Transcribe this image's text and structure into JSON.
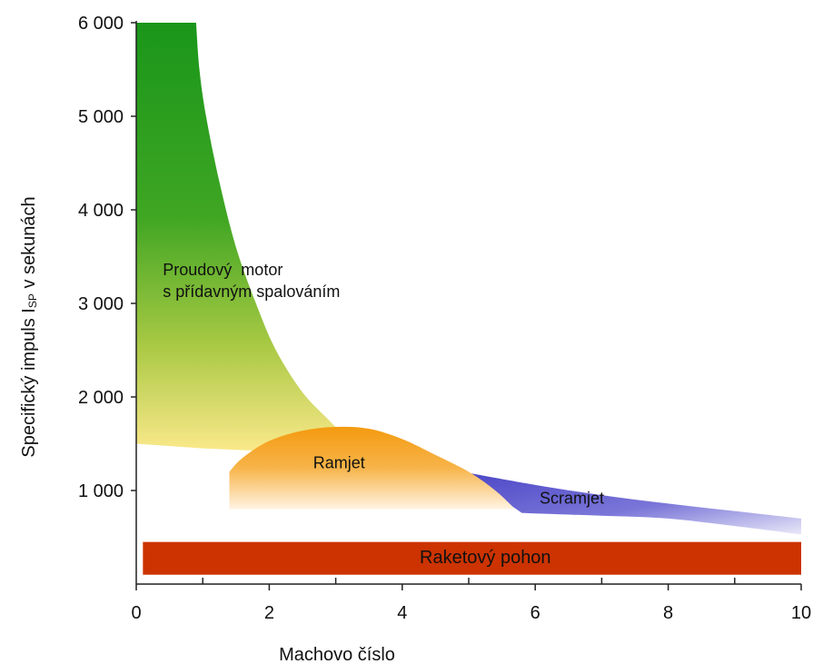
{
  "chart_data": {
    "type": "area",
    "xlabel": "Machovo číslo",
    "ylabel": "Specifický impuls I",
    "ylabel_sub": "SP",
    "ylabel_suffix": " v sekunách",
    "xlim": [
      0,
      10
    ],
    "ylim": [
      0,
      6000
    ],
    "x_ticks": [
      0,
      2,
      4,
      6,
      8,
      10
    ],
    "x_tick_labels": [
      "0",
      "2",
      "4",
      "6",
      "8",
      "10"
    ],
    "x_minor_ticks": [
      1,
      3,
      5,
      7,
      9
    ],
    "y_ticks": [
      1000,
      2000,
      3000,
      4000,
      5000,
      6000
    ],
    "y_tick_labels": [
      "1 000",
      "2 000",
      "3 000",
      "4 000",
      "5 000",
      "6 000"
    ],
    "grid": false,
    "regions": [
      {
        "id": "turbojet",
        "label_lines": [
          "Proudový  motor",
          "s přídavným spalováním"
        ],
        "colors": [
          "#1f9a1f",
          "#fbe88a"
        ],
        "upper": [
          [
            0.9,
            6000
          ],
          [
            0.95,
            5500
          ],
          [
            1.05,
            5000
          ],
          [
            1.25,
            4300
          ],
          [
            1.5,
            3600
          ],
          [
            1.8,
            3000
          ],
          [
            2.1,
            2500
          ],
          [
            2.5,
            2050
          ],
          [
            2.9,
            1750
          ],
          [
            3.2,
            1530
          ]
        ],
        "lower": [
          [
            0,
            1500
          ],
          [
            1.0,
            1450
          ],
          [
            2.0,
            1420
          ],
          [
            3.2,
            1400
          ]
        ]
      },
      {
        "id": "ramjet",
        "label_lines": [
          "Ramjet"
        ],
        "colors": [
          "#f39c12",
          "#fff3e0"
        ],
        "upper": [
          [
            1.4,
            1200
          ],
          [
            1.6,
            1350
          ],
          [
            2.0,
            1530
          ],
          [
            2.5,
            1640
          ],
          [
            3.0,
            1680
          ],
          [
            3.5,
            1660
          ],
          [
            4.0,
            1550
          ],
          [
            4.5,
            1380
          ],
          [
            5.0,
            1200
          ],
          [
            5.4,
            1000
          ],
          [
            5.7,
            800
          ]
        ],
        "lower": [
          [
            1.4,
            800
          ],
          [
            5.7,
            800
          ]
        ]
      },
      {
        "id": "scramjet",
        "label_lines": [
          "Scramjet"
        ],
        "colors": [
          "#4a44c2",
          "#ffffff"
        ],
        "upper": [
          [
            4.9,
            1200
          ],
          [
            6,
            1060
          ],
          [
            7,
            950
          ],
          [
            8,
            860
          ],
          [
            9,
            780
          ],
          [
            10,
            700
          ]
        ],
        "lower": [
          [
            5.8,
            760
          ],
          [
            7,
            730
          ],
          [
            8,
            700
          ],
          [
            9,
            620
          ],
          [
            10,
            530
          ]
        ]
      },
      {
        "id": "rocket",
        "label_lines": [
          "Raketový pohon"
        ],
        "colors": [
          "#cc3300",
          "#cc3300"
        ],
        "y_range": [
          100,
          450
        ],
        "x_range": [
          0.1,
          10
        ]
      }
    ]
  }
}
